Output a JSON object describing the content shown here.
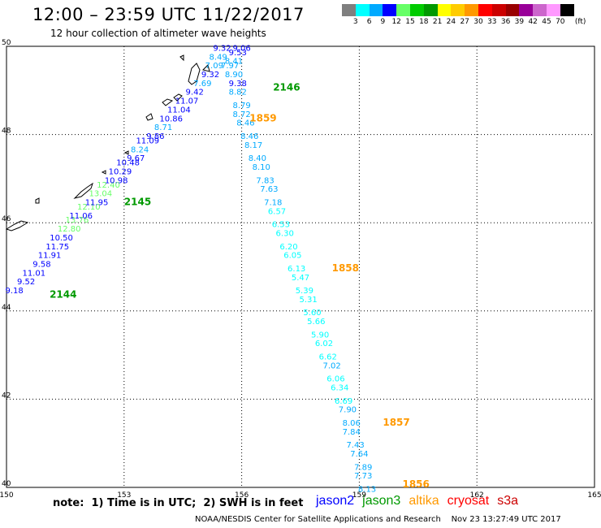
{
  "header": {
    "title": "12:00 – 23:59 UTC 11/22/2017",
    "subtitle": "12 hour collection of altimeter wave heights"
  },
  "colorbar": {
    "colors": [
      "#7f7f7f",
      "#00ffff",
      "#00aaff",
      "#0000ff",
      "#66ff66",
      "#00cc00",
      "#009900",
      "#ffff00",
      "#ffcc00",
      "#ff9900",
      "#ff0000",
      "#cc0000",
      "#990000",
      "#990099",
      "#cc66cc",
      "#ff99ff",
      "#000000"
    ],
    "labels": [
      "3",
      "6",
      "9",
      "12",
      "15",
      "18",
      "21",
      "24",
      "27",
      "30",
      "33",
      "36",
      "39",
      "42",
      "45",
      "70"
    ],
    "unit": "(ft)"
  },
  "chart_data": {
    "type": "scatter",
    "title": "12:00 – 23:59 UTC 11/22/2017",
    "xlim": [
      150,
      165
    ],
    "ylim": [
      40,
      50
    ],
    "x_ticks": [
      "150",
      "153",
      "156",
      "159",
      "162",
      "165"
    ],
    "y_ticks": [
      "40",
      "42",
      "44",
      "46",
      "48",
      "50"
    ],
    "grid": true,
    "legend": "bottom",
    "series": [
      {
        "name": "jason2",
        "points": [
          {
            "lon": 150.2,
            "lat": 44.4,
            "swh": "9.18",
            "color": "#0000ff"
          },
          {
            "lon": 150.5,
            "lat": 44.6,
            "swh": "9.52",
            "color": "#0000ff"
          },
          {
            "lon": 150.7,
            "lat": 44.8,
            "swh": "11.01",
            "color": "#0000ff"
          },
          {
            "lon": 150.9,
            "lat": 45.0,
            "swh": "9.58",
            "color": "#0000ff"
          },
          {
            "lon": 151.1,
            "lat": 45.2,
            "swh": "11.91",
            "color": "#0000ff"
          },
          {
            "lon": 151.3,
            "lat": 45.4,
            "swh": "11.75",
            "color": "#0000ff"
          },
          {
            "lon": 151.4,
            "lat": 45.6,
            "swh": "10.50",
            "color": "#0000ff"
          },
          {
            "lon": 151.6,
            "lat": 45.8,
            "swh": "12.80",
            "color": "#66ff66"
          },
          {
            "lon": 151.8,
            "lat": 46.0,
            "swh": "13.76",
            "color": "#66ff66"
          },
          {
            "lon": 151.9,
            "lat": 46.1,
            "swh": "11.06",
            "color": "#0000ff"
          },
          {
            "lon": 152.1,
            "lat": 46.3,
            "swh": "12.10",
            "color": "#66ff66"
          },
          {
            "lon": 152.3,
            "lat": 46.4,
            "swh": "11.95",
            "color": "#0000ff"
          },
          {
            "lon": 152.4,
            "lat": 46.6,
            "swh": "13.04",
            "color": "#66ff66"
          },
          {
            "lon": 152.6,
            "lat": 46.8,
            "swh": "12.40",
            "color": "#66ff66"
          },
          {
            "lon": 152.8,
            "lat": 46.9,
            "swh": "10.98",
            "color": "#0000ff"
          },
          {
            "lon": 152.9,
            "lat": 47.1,
            "swh": "10.29",
            "color": "#0000ff"
          },
          {
            "lon": 153.1,
            "lat": 47.3,
            "swh": "10.48",
            "color": "#0000ff"
          },
          {
            "lon": 153.3,
            "lat": 47.4,
            "swh": "9.67",
            "color": "#0000ff"
          },
          {
            "lon": 153.4,
            "lat": 47.6,
            "swh": "8.24",
            "color": "#00aaff"
          },
          {
            "lon": 153.6,
            "lat": 47.8,
            "swh": "11.09",
            "color": "#0000ff"
          },
          {
            "lon": 153.8,
            "lat": 47.9,
            "swh": "9.86",
            "color": "#0000ff"
          },
          {
            "lon": 154.0,
            "lat": 48.1,
            "swh": "8.71",
            "color": "#00aaff"
          },
          {
            "lon": 154.2,
            "lat": 48.3,
            "swh": "10.86",
            "color": "#0000ff"
          },
          {
            "lon": 154.4,
            "lat": 48.5,
            "swh": "11.04",
            "color": "#0000ff"
          },
          {
            "lon": 154.6,
            "lat": 48.7,
            "swh": "11.07",
            "color": "#0000ff"
          },
          {
            "lon": 154.8,
            "lat": 48.9,
            "swh": "9.42",
            "color": "#0000ff"
          },
          {
            "lon": 155.0,
            "lat": 49.1,
            "swh": "7.69",
            "color": "#00aaff"
          },
          {
            "lon": 155.2,
            "lat": 49.3,
            "swh": "9.32",
            "color": "#0000ff"
          },
          {
            "lon": 155.3,
            "lat": 49.5,
            "swh": "7.09",
            "color": "#00aaff"
          },
          {
            "lon": 155.4,
            "lat": 49.7,
            "swh": "8.49",
            "color": "#00aaff"
          },
          {
            "lon": 155.5,
            "lat": 49.9,
            "swh": "9.32",
            "color": "#0000ff"
          }
        ],
        "time_labels": [
          {
            "lon": 151.1,
            "lat": 44.3,
            "text": "2144",
            "color": "#009900"
          },
          {
            "lon": 153.0,
            "lat": 46.4,
            "swh": null,
            "text": "2145",
            "color": "#009900"
          }
        ]
      },
      {
        "name": "jason3",
        "points": [
          {
            "lon": 156.0,
            "lat": 49.9,
            "swh": "9.06",
            "color": "#0000ff"
          },
          {
            "lon": 155.9,
            "lat": 49.8,
            "swh": "9.53",
            "color": "#0000ff"
          },
          {
            "lon": 155.8,
            "lat": 49.6,
            "swh": "8.41",
            "color": "#00aaff"
          },
          {
            "lon": 155.7,
            "lat": 49.5,
            "swh": "7.97",
            "color": "#00aaff"
          },
          {
            "lon": 155.8,
            "lat": 49.3,
            "swh": "8.90",
            "color": "#00aaff"
          },
          {
            "lon": 155.9,
            "lat": 49.1,
            "swh": "9.38",
            "color": "#0000ff"
          },
          {
            "lon": 155.9,
            "lat": 48.9,
            "swh": "8.82",
            "color": "#00aaff"
          },
          {
            "lon": 156.0,
            "lat": 48.6,
            "swh": "8.79",
            "color": "#00aaff"
          },
          {
            "lon": 156.0,
            "lat": 48.4,
            "swh": "8.72",
            "color": "#00aaff"
          },
          {
            "lon": 156.1,
            "lat": 48.2,
            "swh": "8.46",
            "color": "#00aaff"
          },
          {
            "lon": 156.2,
            "lat": 47.9,
            "swh": "8.46",
            "color": "#00aaff"
          },
          {
            "lon": 156.3,
            "lat": 47.7,
            "swh": "8.17",
            "color": "#00aaff"
          },
          {
            "lon": 156.4,
            "lat": 47.4,
            "swh": "8.40",
            "color": "#00aaff"
          },
          {
            "lon": 156.5,
            "lat": 47.2,
            "swh": "8.10",
            "color": "#00aaff"
          },
          {
            "lon": 156.6,
            "lat": 46.9,
            "swh": "7.83",
            "color": "#00aaff"
          },
          {
            "lon": 156.7,
            "lat": 46.7,
            "swh": "7.63",
            "color": "#00aaff"
          },
          {
            "lon": 156.8,
            "lat": 46.4,
            "swh": "7.18",
            "color": "#00aaff"
          },
          {
            "lon": 156.9,
            "lat": 46.2,
            "swh": "6.57",
            "color": "#00ffff"
          },
          {
            "lon": 157.0,
            "lat": 45.9,
            "swh": "6.53",
            "color": "#00ffff"
          },
          {
            "lon": 157.1,
            "lat": 45.7,
            "swh": "6.30",
            "color": "#00ffff"
          },
          {
            "lon": 157.2,
            "lat": 45.4,
            "swh": "6.20",
            "color": "#00ffff"
          },
          {
            "lon": 157.3,
            "lat": 45.2,
            "swh": "6.05",
            "color": "#00ffff"
          },
          {
            "lon": 157.4,
            "lat": 44.9,
            "swh": "6.13",
            "color": "#00ffff"
          },
          {
            "lon": 157.5,
            "lat": 44.7,
            "swh": "5.47",
            "color": "#00ffff"
          },
          {
            "lon": 157.6,
            "lat": 44.4,
            "swh": "5.39",
            "color": "#00ffff"
          },
          {
            "lon": 157.7,
            "lat": 44.2,
            "swh": "5.31",
            "color": "#00ffff"
          },
          {
            "lon": 157.8,
            "lat": 43.9,
            "swh": "5.60",
            "color": "#00ffff"
          },
          {
            "lon": 157.9,
            "lat": 43.7,
            "swh": "5.66",
            "color": "#00ffff"
          },
          {
            "lon": 158.0,
            "lat": 43.4,
            "swh": "5.90",
            "color": "#00ffff"
          },
          {
            "lon": 158.1,
            "lat": 43.2,
            "swh": "6.02",
            "color": "#00ffff"
          },
          {
            "lon": 158.2,
            "lat": 42.9,
            "swh": "6.62",
            "color": "#00ffff"
          },
          {
            "lon": 158.3,
            "lat": 42.7,
            "swh": "7.02",
            "color": "#00aaff"
          },
          {
            "lon": 158.4,
            "lat": 42.4,
            "swh": "6.06",
            "color": "#00ffff"
          },
          {
            "lon": 158.5,
            "lat": 42.2,
            "swh": "6.34",
            "color": "#00ffff"
          },
          {
            "lon": 158.6,
            "lat": 41.9,
            "swh": "6.69",
            "color": "#00ffff"
          },
          {
            "lon": 158.7,
            "lat": 41.7,
            "swh": "7.90",
            "color": "#00aaff"
          },
          {
            "lon": 158.8,
            "lat": 41.4,
            "swh": "8.06",
            "color": "#00aaff"
          },
          {
            "lon": 158.8,
            "lat": 41.2,
            "swh": "7.84",
            "color": "#00aaff"
          },
          {
            "lon": 158.9,
            "lat": 40.9,
            "swh": "7.43",
            "color": "#00aaff"
          },
          {
            "lon": 159.0,
            "lat": 40.7,
            "swh": "7.64",
            "color": "#00aaff"
          },
          {
            "lon": 159.1,
            "lat": 40.4,
            "swh": "7.89",
            "color": "#00aaff"
          },
          {
            "lon": 159.1,
            "lat": 40.2,
            "swh": "7.73",
            "color": "#00aaff"
          },
          {
            "lon": 159.2,
            "lat": 39.9,
            "swh": "8.13",
            "color": "#00aaff"
          }
        ],
        "time_labels": [
          {
            "lon": 156.2,
            "lat": 48.3,
            "text": "1859",
            "color": "#ff9900"
          },
          {
            "lon": 158.3,
            "lat": 44.9,
            "text": "1858",
            "color": "#ff9900"
          },
          {
            "lon": 159.6,
            "lat": 41.4,
            "text": "1857",
            "color": "#ff9900"
          },
          {
            "lon": 160.1,
            "lat": 40.0,
            "text": "1856",
            "color": "#ff9900"
          },
          {
            "lon": 156.8,
            "lat": 49.0,
            "text": "2146",
            "color": "#009900"
          }
        ]
      }
    ]
  },
  "footer": {
    "note": "note:  1) Time is in UTC;  2) SWH is in feet",
    "legend": [
      {
        "name": "jason2",
        "color": "#0000ff"
      },
      {
        "name": "jason3",
        "color": "#009900"
      },
      {
        "name": "altika",
        "color": "#ff9900"
      },
      {
        "name": "cryosat",
        "color": "#ff0000"
      },
      {
        "name": "s3a",
        "color": "#cc0000"
      }
    ],
    "credits": "NOAA/NESDIS Center for Satellite Applications and Research    Nov 23 13:27:49 UTC 2017"
  }
}
